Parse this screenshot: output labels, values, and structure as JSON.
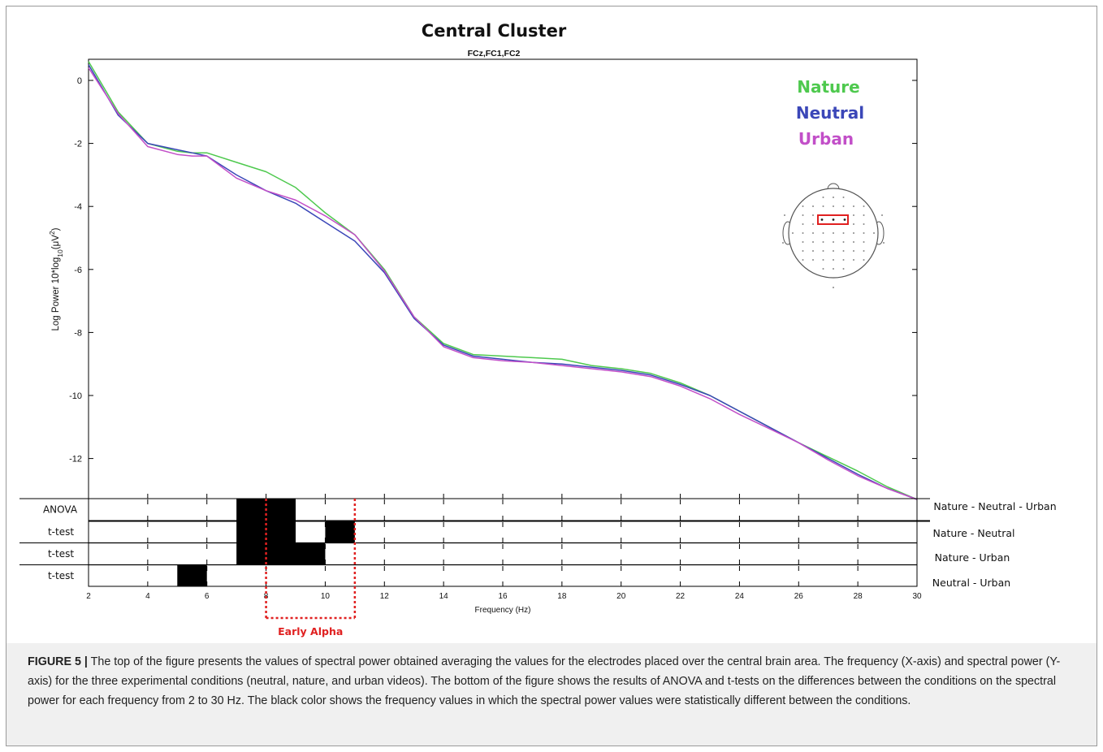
{
  "chart_data": {
    "type": "line",
    "title": "Central Cluster",
    "subtitle": "FCz,FC1,FC2",
    "xlabel": "Frequency (Hz)",
    "ylabel": "Log Power 10*log10(μV2)",
    "xlim": [
      2,
      30
    ],
    "ylim": [
      -13.3,
      0.6
    ],
    "x_ticks": [
      2,
      4,
      6,
      8,
      10,
      12,
      14,
      16,
      18,
      20,
      22,
      24,
      26,
      28,
      30
    ],
    "y_ticks": [
      0,
      -2,
      -4,
      -6,
      -8,
      -10,
      -12
    ],
    "legend_position": "top-right",
    "x": [
      2,
      3,
      4,
      5,
      5.5,
      6,
      7,
      8,
      9,
      10,
      11,
      12,
      13,
      14,
      15,
      16,
      17,
      18,
      19,
      20,
      21,
      22,
      23,
      24,
      25,
      26,
      27,
      28,
      29,
      30
    ],
    "series": [
      {
        "name": "Nature",
        "color": "#4ec94e",
        "values": [
          0.6,
          -1.0,
          -2.0,
          -2.25,
          -2.3,
          -2.3,
          -2.6,
          -2.9,
          -3.4,
          -4.2,
          -4.9,
          -6.0,
          -7.5,
          -8.35,
          -8.7,
          -8.75,
          -8.8,
          -8.85,
          -9.05,
          -9.15,
          -9.3,
          -9.6,
          -10.0,
          -10.5,
          -11.0,
          -11.5,
          -11.95,
          -12.4,
          -12.9,
          -13.3
        ]
      },
      {
        "name": "Neutral",
        "color": "#3b47b8",
        "values": [
          0.5,
          -1.1,
          -2.0,
          -2.2,
          -2.3,
          -2.4,
          -3.0,
          -3.5,
          -3.9,
          -4.5,
          -5.1,
          -6.1,
          -7.55,
          -8.4,
          -8.75,
          -8.85,
          -8.95,
          -9.0,
          -9.1,
          -9.2,
          -9.35,
          -9.65,
          -10.0,
          -10.5,
          -11.0,
          -11.5,
          -12.0,
          -12.5,
          -12.95,
          -13.3
        ]
      },
      {
        "name": "Urban",
        "color": "#c24fc8",
        "values": [
          0.4,
          -1.05,
          -2.1,
          -2.35,
          -2.4,
          -2.4,
          -3.1,
          -3.5,
          -3.8,
          -4.3,
          -4.9,
          -6.05,
          -7.5,
          -8.45,
          -8.8,
          -8.9,
          -8.95,
          -9.05,
          -9.15,
          -9.25,
          -9.4,
          -9.7,
          -10.1,
          -10.6,
          -11.05,
          -11.5,
          -12.05,
          -12.55,
          -12.95,
          -13.3
        ]
      }
    ],
    "significance": {
      "rows": [
        {
          "label": "ANOVA",
          "comparison": "Nature - Neutral - Urban",
          "cells": [
            [
              7,
              8
            ],
            [
              8,
              9
            ]
          ]
        },
        {
          "label": "t-test",
          "comparison": "Nature - Neutral",
          "cells": [
            [
              7,
              8
            ],
            [
              8,
              9
            ],
            [
              10,
              11
            ]
          ]
        },
        {
          "label": "t-test",
          "comparison": "Nature - Urban",
          "cells": [
            [
              7,
              8
            ],
            [
              8,
              9
            ],
            [
              9,
              10
            ]
          ]
        },
        {
          "label": "t-test",
          "comparison": "Neutral - Urban",
          "cells": [
            [
              5,
              6
            ]
          ]
        }
      ],
      "highlight": {
        "label": "Early Alpha",
        "range": [
          8,
          11
        ],
        "color": "#e02020"
      }
    }
  },
  "figure": {
    "caption_label": "FIGURE 5 |",
    "caption_text": "The top of the figure presents the values of spectral power obtained averaging the values for the electrodes placed over the central brain area. The frequency (X-axis) and spectral power (Y-axis) for the three experimental conditions (neutral, nature, and urban videos). The bottom of the figure shows the results of ANOVA and t-tests on the differences between the conditions on the spectral power for each frequency from 2 to 30 Hz. The black color shows the frequency values in which the spectral power values were statistically different between the conditions."
  },
  "head_map": {
    "icon": "scalp-electrode-map-icon",
    "highlight_color": "#e02020"
  }
}
